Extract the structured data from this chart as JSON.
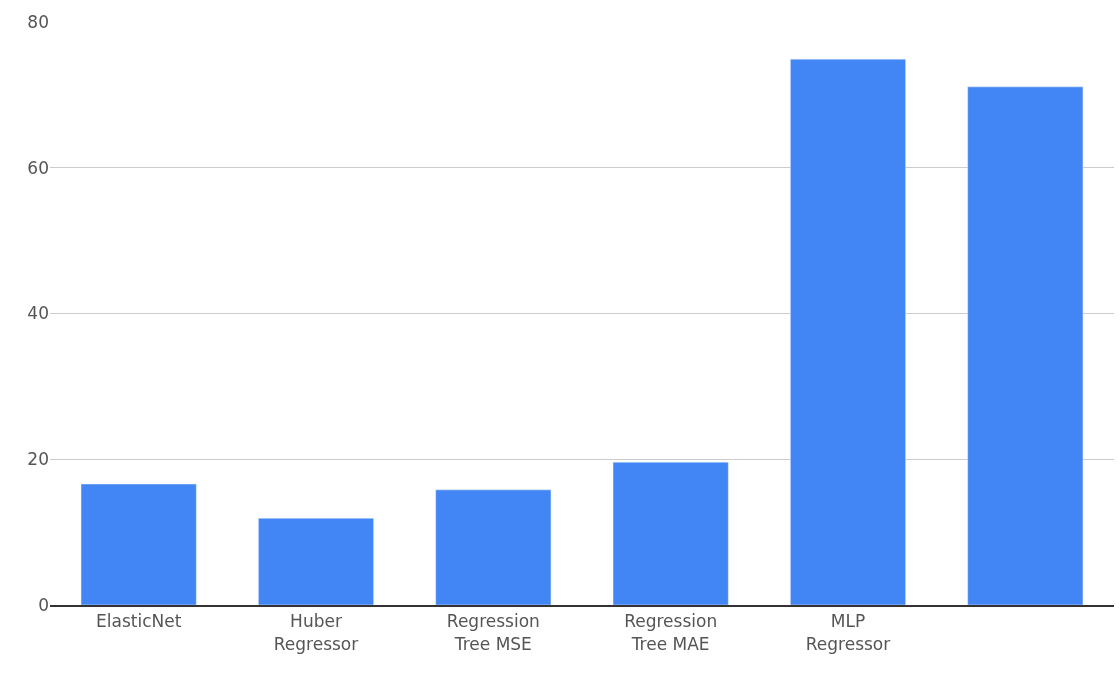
{
  "chart_data": {
    "type": "bar",
    "categories": [
      "ElasticNet",
      "Huber Regressor",
      "Regression Tree MSE",
      "Regression Tree MAE",
      "MLP Regressor",
      null
    ],
    "values": [
      16.6,
      11.9,
      15.8,
      19.6,
      74.9,
      71.1
    ],
    "color": "#4285f4",
    "ylim": [
      0,
      80
    ],
    "yticks": [
      0,
      20,
      40,
      60,
      80
    ],
    "grid": "y",
    "legend": false
  }
}
